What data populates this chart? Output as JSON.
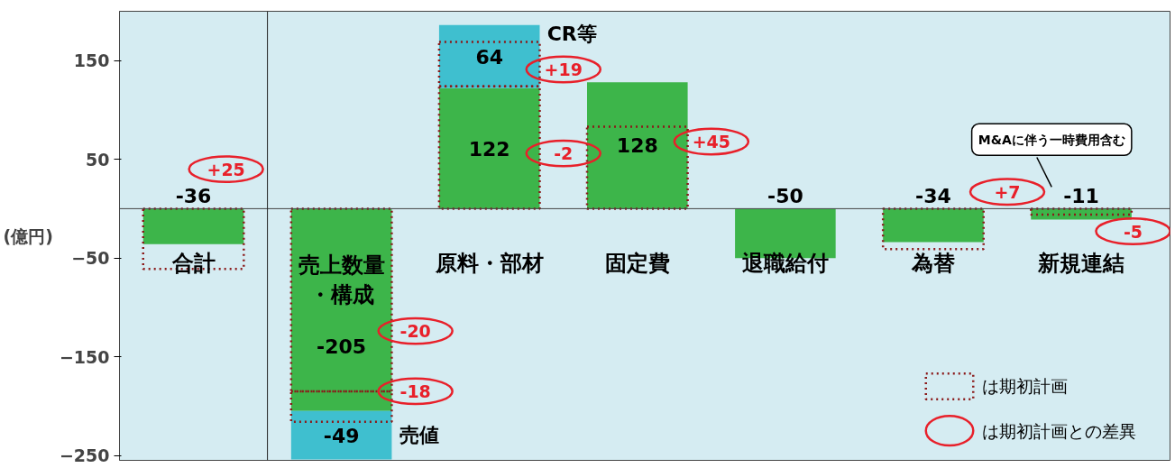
{
  "chart_data": {
    "type": "bar",
    "ylabel": "(億円)",
    "categories": [
      "合計",
      "売上数量・構成",
      "原料・部材",
      "固定費",
      "退職給付",
      "為替",
      "新規連結"
    ],
    "ylim": [
      -255,
      200
    ],
    "yticks": [
      150,
      50,
      -50,
      -150,
      -250
    ],
    "grid": false,
    "tick_labels": "y",
    "legend": "bottom right",
    "series": [
      {
        "color": "#3db54a",
        "values": [
          -36,
          -205,
          122,
          128,
          -50,
          -34,
          -11
        ],
        "base": [
          0,
          0,
          0,
          0,
          0,
          0,
          0
        ],
        "value_labels": [
          "-36",
          "-205",
          "122",
          "128",
          "-50",
          "-34",
          "-11"
        ]
      },
      {
        "name": "売値",
        "color": "#3fbfcf",
        "values": [
          null,
          -49,
          null,
          null,
          null,
          null,
          null
        ],
        "base": [
          null,
          -205,
          null,
          null,
          null,
          null,
          null
        ],
        "value_labels": [
          null,
          "-49",
          null,
          null,
          null,
          null,
          null
        ]
      },
      {
        "name": "CR等",
        "color": "#3fbfcf",
        "values": [
          null,
          null,
          64,
          null,
          null,
          null,
          null
        ],
        "base": [
          null,
          null,
          122,
          null,
          null,
          null,
          null
        ],
        "value_labels": [
          null,
          null,
          "64",
          null,
          null,
          null,
          null
        ]
      },
      {
        "name": "は期初計画",
        "line_style": "dotted",
        "color": "#8b1a1a",
        "values": [
          -61,
          -185,
          124,
          83,
          null,
          -41,
          -6
        ],
        "base": [
          0,
          0,
          0,
          0,
          null,
          0,
          0
        ]
      },
      {
        "line_style": "dotted",
        "color": "#8b1a1a",
        "values": [
          null,
          -31,
          45,
          null,
          null,
          null,
          null
        ],
        "base": [
          null,
          -185,
          124,
          null,
          null,
          null,
          null
        ]
      }
    ],
    "annotations": [
      "+25",
      "-20",
      "-18",
      "+19",
      "-2",
      "+45",
      "+7",
      "-5",
      "は期初計画との差異",
      "M&Aに伴う一時費用含む"
    ]
  }
}
